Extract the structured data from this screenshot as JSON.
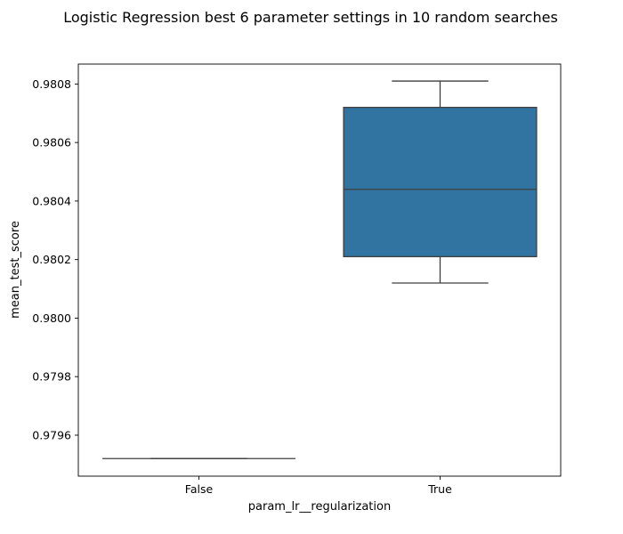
{
  "chart_data": {
    "type": "box",
    "title": "Logistic Regression best 6 parameter settings in 10 random searches",
    "xlabel": "param_lr__regularization",
    "ylabel": "mean_test_score",
    "categories": [
      "False",
      "True"
    ],
    "boxes": [
      {
        "category": "False",
        "whisker_low": 0.97952,
        "q1": 0.97952,
        "median": 0.97952,
        "q3": 0.97952,
        "whisker_high": 0.97952
      },
      {
        "category": "True",
        "whisker_low": 0.98012,
        "q1": 0.98021,
        "median": 0.98044,
        "q3": 0.98072,
        "whisker_high": 0.98081
      }
    ],
    "yticks": [
      0.9796,
      0.9798,
      0.98,
      0.9802,
      0.9804,
      0.9806,
      0.9808
    ],
    "ytick_labels": [
      "0.9796",
      "0.9798",
      "0.9800",
      "0.9802",
      "0.9804",
      "0.9806",
      "0.9808"
    ],
    "ylim": [
      0.97946,
      0.980868
    ],
    "box_color": "#3274a1",
    "line_color": "#3f3f3f",
    "grid": false
  }
}
